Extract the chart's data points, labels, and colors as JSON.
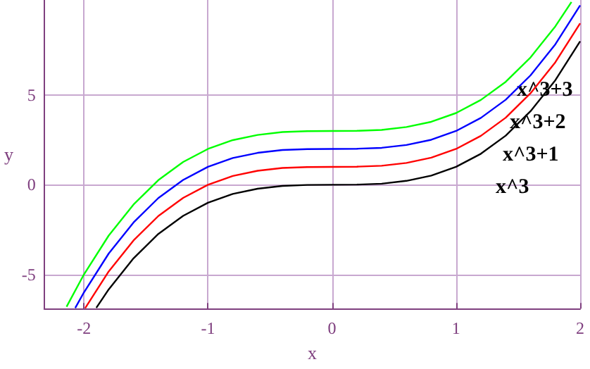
{
  "chart_data": {
    "type": "line",
    "xlabel": "x",
    "ylabel": "y",
    "xlim": [
      -2.32,
      2
    ],
    "ylim": [
      -6.9,
      10.3
    ],
    "xticks": [
      -2,
      -1,
      0,
      1,
      2
    ],
    "yticks": [
      -5,
      0,
      5
    ],
    "grid": true,
    "marker": "none",
    "series": [
      {
        "color": "#000000",
        "x": [
          -1.9,
          -1.8,
          -1.6,
          -1.4,
          -1.2,
          -1,
          -0.8,
          -0.6,
          -0.4,
          -0.2,
          0,
          0.2,
          0.4,
          0.6,
          0.8,
          1,
          1.2,
          1.4,
          1.6,
          1.8,
          2
        ],
        "values": [
          -6.86,
          -5.83,
          -4.1,
          -2.74,
          -1.73,
          -1,
          -0.51,
          -0.22,
          -0.06,
          -0.01,
          0,
          0.01,
          0.06,
          0.22,
          0.51,
          1,
          1.73,
          2.74,
          4.1,
          5.83,
          8
        ]
      },
      {
        "color": "#ff0000",
        "x": [
          -1.99,
          -1.8,
          -1.6,
          -1.4,
          -1.2,
          -1,
          -0.8,
          -0.6,
          -0.4,
          -0.2,
          0,
          0.2,
          0.4,
          0.6,
          0.8,
          1,
          1.2,
          1.4,
          1.6,
          1.8,
          2
        ],
        "values": [
          -6.88,
          -4.83,
          -3.1,
          -1.74,
          -0.73,
          0,
          0.49,
          0.78,
          0.94,
          0.99,
          1,
          1.01,
          1.06,
          1.22,
          1.51,
          2,
          2.73,
          3.74,
          5.1,
          6.83,
          9
        ]
      },
      {
        "color": "#0000ff",
        "x": [
          -2.07,
          -2,
          -1.8,
          -1.6,
          -1.4,
          -1.2,
          -1,
          -0.8,
          -0.6,
          -0.4,
          -0.2,
          0,
          0.2,
          0.4,
          0.6,
          0.8,
          1,
          1.2,
          1.4,
          1.6,
          1.8,
          2
        ],
        "values": [
          -6.87,
          -6,
          -3.83,
          -2.1,
          -0.74,
          0.27,
          1,
          1.49,
          1.78,
          1.94,
          1.99,
          2,
          2.01,
          2.06,
          2.22,
          2.51,
          3,
          3.73,
          4.74,
          6.1,
          7.83,
          10
        ]
      },
      {
        "color": "#00ff00",
        "x": [
          -2.14,
          -2,
          -1.8,
          -1.6,
          -1.4,
          -1.2,
          -1,
          -0.8,
          -0.6,
          -0.4,
          -0.2,
          0,
          0.2,
          0.4,
          0.6,
          0.8,
          1,
          1.2,
          1.4,
          1.6,
          1.8,
          1.93
        ],
        "values": [
          -6.8,
          -5,
          -2.83,
          -1.1,
          0.26,
          1.27,
          2,
          2.49,
          2.78,
          2.94,
          2.99,
          3,
          3.01,
          3.06,
          3.22,
          3.51,
          4,
          4.73,
          5.74,
          7.1,
          8.83,
          10.19
        ]
      }
    ],
    "annotations": [
      "x^3+3",
      "x^3+2",
      "x^3+1",
      "x^3"
    ]
  }
}
